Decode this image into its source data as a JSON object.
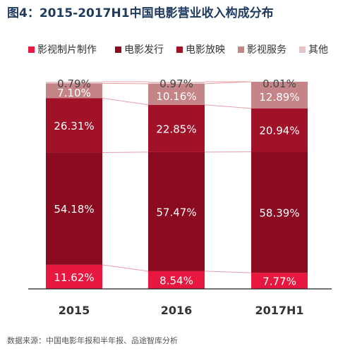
{
  "title": "图4：2015-2017H1中国电影营业收入构成分布",
  "source": "数据来源：中国电影年报和半年报、品途智库分析",
  "chart_data": {
    "type": "bar",
    "stacked": true,
    "normalized": true,
    "categories": [
      "2015",
      "2016",
      "2017H1"
    ],
    "series": [
      {
        "name": "影视制片制作",
        "color": "#e8173f",
        "values": [
          11.62,
          8.54,
          7.77
        ],
        "labels": [
          "11.62%",
          "8.54%",
          "7.77%"
        ]
      },
      {
        "name": "电影发行",
        "color": "#8a0a1f",
        "values": [
          54.18,
          57.47,
          58.39
        ],
        "labels": [
          "54.18%",
          "57.47%",
          "58.39%"
        ]
      },
      {
        "name": "电影放映",
        "color": "#a11229",
        "values": [
          26.31,
          22.85,
          20.94
        ],
        "labels": [
          "26.31%",
          "22.85%",
          "20.94%"
        ]
      },
      {
        "name": "影视服务",
        "color": "#c48488",
        "values": [
          7.1,
          10.16,
          12.89
        ],
        "labels": [
          "7.10%",
          "10.16%",
          "12.89%"
        ]
      },
      {
        "name": "其他",
        "color": "#e6c3c6",
        "values": [
          0.79,
          0.97,
          0.01
        ],
        "labels": [
          "0.79%",
          "0.97%",
          "0.01%"
        ]
      }
    ],
    "ylim": [
      0,
      100
    ],
    "legend": "top",
    "grid": false,
    "connector_lines": true
  }
}
